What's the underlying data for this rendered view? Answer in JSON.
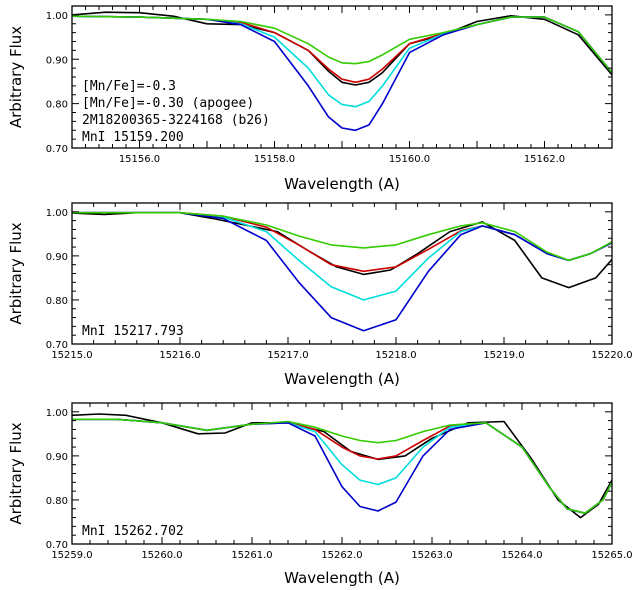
{
  "chart_data": [
    {
      "type": "line",
      "xlabel": "Wavelength (A)",
      "ylabel": "Arbitrary Flux",
      "xlim": [
        15155.0,
        15163.0
      ],
      "ylim": [
        0.7,
        1.02
      ],
      "xticks": [
        15156.0,
        15158.0,
        15160.0,
        15162.0
      ],
      "xtick_labels": [
        "15156.0",
        "15158.0",
        "15160.0",
        "15162.0"
      ],
      "yticks": [
        0.7,
        0.8,
        0.9,
        1.0
      ],
      "ytick_labels": [
        "0.70",
        "0.80",
        "0.90",
        "1.00"
      ],
      "annotations": [
        "[Mn/Fe]=-0.3",
        "[Mn/Fe]=-0.30 (apogee)",
        "2M18200365-3224168 (b26)",
        "MnI 15159.200"
      ],
      "series": [
        {
          "color": "#000000",
          "x": [
            15155.0,
            15155.5,
            15156.0,
            15156.5,
            15157.0,
            15157.5,
            15158.0,
            15158.5,
            15158.8,
            15159.0,
            15159.2,
            15159.4,
            15159.6,
            15160.0,
            15160.5,
            15161.0,
            15161.5,
            15162.0,
            15162.5,
            15163.0
          ],
          "y": [
            1.0,
            1.006,
            1.005,
            0.997,
            0.98,
            0.978,
            0.96,
            0.92,
            0.873,
            0.848,
            0.842,
            0.848,
            0.87,
            0.935,
            0.955,
            0.985,
            0.998,
            0.99,
            0.955,
            0.865
          ]
        },
        {
          "color": "#cc0000",
          "x": [
            15155.0,
            15156.0,
            15157.0,
            15157.5,
            15158.0,
            15158.5,
            15158.8,
            15159.0,
            15159.2,
            15159.4,
            15159.6,
            15160.0,
            15160.5,
            15161.0,
            15161.5,
            15162.0,
            15162.5,
            15163.0
          ],
          "y": [
            0.997,
            0.995,
            0.99,
            0.983,
            0.96,
            0.92,
            0.878,
            0.855,
            0.848,
            0.855,
            0.878,
            0.935,
            0.958,
            0.978,
            0.995,
            0.995,
            0.962,
            0.87
          ]
        },
        {
          "color": "#00dddd",
          "x": [
            15155.0,
            15156.0,
            15157.0,
            15157.5,
            15158.0,
            15158.5,
            15158.8,
            15159.0,
            15159.2,
            15159.4,
            15159.6,
            15160.0,
            15160.5,
            15161.0,
            15161.5,
            15162.0,
            15162.5,
            15163.0
          ],
          "y": [
            0.997,
            0.995,
            0.99,
            0.98,
            0.95,
            0.88,
            0.82,
            0.798,
            0.793,
            0.805,
            0.84,
            0.925,
            0.957,
            0.978,
            0.995,
            0.995,
            0.962,
            0.87
          ]
        },
        {
          "color": "#0000cc",
          "x": [
            15155.0,
            15156.0,
            15157.0,
            15157.5,
            15158.0,
            15158.5,
            15158.8,
            15159.0,
            15159.2,
            15159.4,
            15159.6,
            15160.0,
            15160.5,
            15161.0,
            15161.5,
            15162.0,
            15162.5,
            15163.0
          ],
          "y": [
            0.997,
            0.995,
            0.99,
            0.978,
            0.94,
            0.84,
            0.77,
            0.745,
            0.74,
            0.752,
            0.8,
            0.915,
            0.955,
            0.978,
            0.995,
            0.995,
            0.962,
            0.87
          ]
        },
        {
          "color": "#33cc00",
          "x": [
            15155.0,
            15156.0,
            15157.0,
            15157.5,
            15158.0,
            15158.5,
            15158.8,
            15159.0,
            15159.2,
            15159.4,
            15159.6,
            15160.0,
            15160.5,
            15161.0,
            15161.5,
            15162.0,
            15162.5,
            15163.0
          ],
          "y": [
            0.997,
            0.995,
            0.99,
            0.985,
            0.97,
            0.935,
            0.905,
            0.892,
            0.89,
            0.895,
            0.91,
            0.945,
            0.96,
            0.978,
            0.995,
            0.995,
            0.962,
            0.87
          ]
        }
      ]
    },
    {
      "type": "line",
      "xlabel": "Wavelength (A)",
      "ylabel": "Arbitrary Flux",
      "xlim": [
        15215.0,
        15220.0
      ],
      "ylim": [
        0.7,
        1.02
      ],
      "xticks": [
        15215.0,
        15216.0,
        15217.0,
        15218.0,
        15219.0,
        15220.0
      ],
      "xtick_labels": [
        "15215.0",
        "15216.0",
        "15217.0",
        "15218.0",
        "15219.0",
        "15220.0"
      ],
      "yticks": [
        0.7,
        0.8,
        0.9,
        1.0
      ],
      "ytick_labels": [
        "0.70",
        "0.80",
        "0.90",
        "1.00"
      ],
      "annotations": [
        "MnI 15217.793"
      ],
      "series": [
        {
          "color": "#000000",
          "x": [
            15215.0,
            15215.3,
            15215.6,
            15216.0,
            15216.3,
            15216.6,
            15216.9,
            15217.2,
            15217.45,
            15217.7,
            15217.95,
            15218.2,
            15218.5,
            15218.8,
            15219.1,
            15219.35,
            15219.6,
            15219.85,
            15220.0
          ],
          "y": [
            0.997,
            0.994,
            0.998,
            0.998,
            0.985,
            0.97,
            0.955,
            0.91,
            0.875,
            0.858,
            0.868,
            0.905,
            0.955,
            0.977,
            0.935,
            0.85,
            0.828,
            0.85,
            0.892
          ]
        },
        {
          "color": "#cc0000",
          "x": [
            15215.0,
            15216.0,
            15216.4,
            15216.8,
            15217.1,
            15217.4,
            15217.7,
            15218.0,
            15218.3,
            15218.6,
            15218.8,
            15219.1,
            15219.4,
            15219.6,
            15219.8,
            15220.0
          ],
          "y": [
            0.998,
            0.998,
            0.99,
            0.965,
            0.925,
            0.88,
            0.865,
            0.875,
            0.915,
            0.957,
            0.968,
            0.948,
            0.905,
            0.89,
            0.905,
            0.93
          ]
        },
        {
          "color": "#00dddd",
          "x": [
            15215.0,
            15216.0,
            15216.4,
            15216.8,
            15217.1,
            15217.4,
            15217.7,
            15218.0,
            15218.3,
            15218.6,
            15218.8,
            15219.1,
            15219.4,
            15219.6,
            15219.8,
            15220.0
          ],
          "y": [
            0.998,
            0.998,
            0.988,
            0.955,
            0.89,
            0.83,
            0.8,
            0.82,
            0.895,
            0.955,
            0.968,
            0.948,
            0.905,
            0.89,
            0.905,
            0.93
          ]
        },
        {
          "color": "#0000cc",
          "x": [
            15215.0,
            15216.0,
            15216.4,
            15216.8,
            15217.1,
            15217.4,
            15217.7,
            15218.0,
            15218.3,
            15218.6,
            15218.8,
            15219.1,
            15219.4,
            15219.6,
            15219.8,
            15220.0
          ],
          "y": [
            0.998,
            0.998,
            0.985,
            0.935,
            0.84,
            0.76,
            0.73,
            0.755,
            0.865,
            0.948,
            0.968,
            0.948,
            0.905,
            0.89,
            0.905,
            0.93
          ]
        },
        {
          "color": "#33cc00",
          "x": [
            15215.0,
            15216.0,
            15216.4,
            15216.8,
            15217.1,
            15217.4,
            15217.7,
            15218.0,
            15218.3,
            15218.6,
            15218.8,
            15219.1,
            15219.4,
            15219.6,
            15219.8,
            15220.0
          ],
          "y": [
            0.998,
            0.998,
            0.99,
            0.97,
            0.945,
            0.925,
            0.918,
            0.925,
            0.948,
            0.968,
            0.975,
            0.955,
            0.908,
            0.89,
            0.905,
            0.932
          ]
        }
      ]
    },
    {
      "type": "line",
      "xlabel": "Wavelength (A)",
      "ylabel": "Arbitrary Flux",
      "xlim": [
        15259.0,
        15265.0
      ],
      "ylim": [
        0.7,
        1.02
      ],
      "xticks": [
        15259.0,
        15260.0,
        15261.0,
        15262.0,
        15263.0,
        15264.0,
        15265.0
      ],
      "xtick_labels": [
        "15259.0",
        "15260.0",
        "15261.0",
        "15262.0",
        "15263.0",
        "15264.0",
        "15265.0"
      ],
      "yticks": [
        0.7,
        0.8,
        0.9,
        1.0
      ],
      "ytick_labels": [
        "0.70",
        "0.80",
        "0.90",
        "1.00"
      ],
      "annotations": [
        "MnI 15262.702"
      ],
      "series": [
        {
          "color": "#000000",
          "x": [
            15259.0,
            15259.3,
            15259.6,
            15260.0,
            15260.4,
            15260.7,
            15261.0,
            15261.4,
            15261.8,
            15262.1,
            15262.4,
            15262.7,
            15263.0,
            15263.4,
            15263.8,
            15264.1,
            15264.4,
            15264.65,
            15264.85,
            15265.0
          ],
          "y": [
            0.992,
            0.995,
            0.992,
            0.975,
            0.95,
            0.952,
            0.975,
            0.975,
            0.955,
            0.91,
            0.892,
            0.9,
            0.94,
            0.975,
            0.978,
            0.895,
            0.8,
            0.76,
            0.79,
            0.845
          ]
        },
        {
          "color": "#cc0000",
          "x": [
            15259.0,
            15259.5,
            15260.0,
            15260.5,
            15261.0,
            15261.4,
            15261.7,
            15262.0,
            15262.2,
            15262.4,
            15262.6,
            15262.9,
            15263.2,
            15263.6,
            15264.0,
            15264.3,
            15264.5,
            15264.7,
            15264.9,
            15265.0
          ],
          "y": [
            0.983,
            0.983,
            0.975,
            0.958,
            0.972,
            0.975,
            0.96,
            0.92,
            0.9,
            0.893,
            0.9,
            0.935,
            0.968,
            0.975,
            0.92,
            0.83,
            0.78,
            0.77,
            0.8,
            0.84
          ]
        },
        {
          "color": "#00dddd",
          "x": [
            15259.0,
            15259.5,
            15260.0,
            15260.5,
            15261.0,
            15261.4,
            15261.7,
            15262.0,
            15262.2,
            15262.4,
            15262.6,
            15262.9,
            15263.2,
            15263.6,
            15264.0,
            15264.3,
            15264.5,
            15264.7,
            15264.9,
            15265.0
          ],
          "y": [
            0.983,
            0.983,
            0.975,
            0.958,
            0.972,
            0.975,
            0.955,
            0.88,
            0.845,
            0.835,
            0.85,
            0.92,
            0.965,
            0.975,
            0.92,
            0.83,
            0.78,
            0.77,
            0.8,
            0.84
          ]
        },
        {
          "color": "#0000cc",
          "x": [
            15259.0,
            15259.5,
            15260.0,
            15260.5,
            15261.0,
            15261.4,
            15261.7,
            15262.0,
            15262.2,
            15262.4,
            15262.6,
            15262.9,
            15263.2,
            15263.6,
            15264.0,
            15264.3,
            15264.5,
            15264.7,
            15264.9,
            15265.0
          ],
          "y": [
            0.983,
            0.983,
            0.975,
            0.958,
            0.972,
            0.975,
            0.945,
            0.83,
            0.785,
            0.775,
            0.795,
            0.9,
            0.96,
            0.975,
            0.92,
            0.83,
            0.78,
            0.77,
            0.8,
            0.84
          ]
        },
        {
          "color": "#33cc00",
          "x": [
            15259.0,
            15259.5,
            15260.0,
            15260.5,
            15261.0,
            15261.4,
            15261.7,
            15262.0,
            15262.2,
            15262.4,
            15262.6,
            15262.9,
            15263.2,
            15263.6,
            15264.0,
            15264.3,
            15264.5,
            15264.7,
            15264.9,
            15265.0
          ],
          "y": [
            0.983,
            0.983,
            0.975,
            0.958,
            0.972,
            0.978,
            0.965,
            0.945,
            0.935,
            0.93,
            0.935,
            0.955,
            0.97,
            0.975,
            0.92,
            0.83,
            0.78,
            0.77,
            0.8,
            0.84
          ]
        }
      ]
    }
  ]
}
